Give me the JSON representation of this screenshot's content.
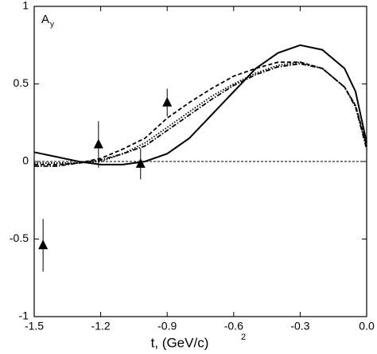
{
  "chart_data": {
    "type": "line",
    "xlabel": {
      "text": "t, (GeV/c)",
      "superscript": "2"
    },
    "ylabel": {
      "text": "A",
      "subscript": "y"
    },
    "xlim": [
      -1.5,
      0
    ],
    "ylim": [
      -1,
      1
    ],
    "xticks": [
      -1.5,
      -1.2,
      -0.9,
      -0.6,
      -0.3,
      {
        "value": 0,
        "label": "0.0"
      }
    ],
    "yticks": [
      -1,
      -0.5,
      0,
      0.5,
      1
    ],
    "reference_line": 0,
    "x": [
      -1.5,
      -1.4,
      -1.3,
      -1.2,
      -1.1,
      -1.0,
      -0.9,
      -0.8,
      -0.7,
      -0.6,
      -0.5,
      -0.4,
      -0.3,
      -0.2,
      -0.1,
      -0.05,
      0
    ],
    "series": [
      {
        "color": "#000000",
        "dash": "solid",
        "values": [
          0.06,
          0.03,
          0.0,
          -0.02,
          -0.02,
          0.0,
          0.05,
          0.15,
          0.3,
          0.45,
          0.6,
          0.7,
          0.75,
          0.72,
          0.6,
          0.45,
          0.12
        ]
      },
      {
        "color": "#000000",
        "dash": "dashed",
        "values": [
          -0.02,
          -0.02,
          -0.01,
          0.02,
          0.08,
          0.15,
          0.28,
          0.38,
          0.47,
          0.55,
          0.6,
          0.64,
          0.64,
          0.6,
          0.48,
          0.36,
          0.1
        ]
      },
      {
        "color": "#000000",
        "dash": "dotted",
        "values": [
          -0.01,
          -0.01,
          -0.01,
          0.0,
          0.05,
          0.12,
          0.22,
          0.32,
          0.42,
          0.5,
          0.57,
          0.62,
          0.64,
          0.6,
          0.48,
          0.36,
          0.1
        ]
      },
      {
        "color": "#000000",
        "dash": "dashdot",
        "values": [
          -0.03,
          -0.03,
          -0.01,
          0.01,
          0.05,
          0.1,
          0.2,
          0.3,
          0.4,
          0.49,
          0.56,
          0.61,
          0.63,
          0.6,
          0.48,
          0.35,
          0.08
        ]
      }
    ],
    "points": {
      "color": "#000000",
      "marker": "triangle",
      "x": [
        -1.46,
        -1.21,
        -1.02,
        -0.9
      ],
      "y": [
        -0.54,
        0.11,
        -0.015,
        0.38
      ],
      "yerr": [
        0.17,
        0.15,
        0.1,
        0.09
      ]
    }
  }
}
